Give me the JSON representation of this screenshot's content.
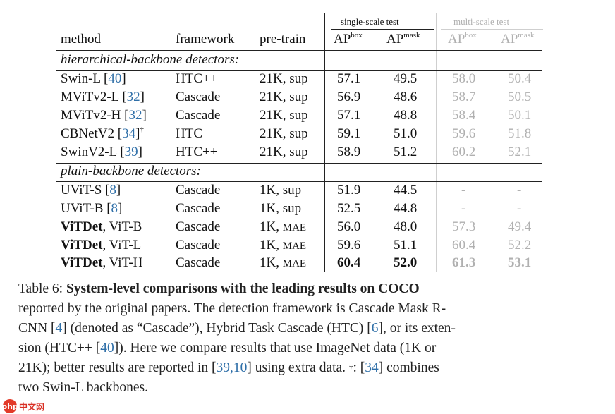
{
  "table": {
    "headers": {
      "method": "method",
      "framework": "framework",
      "pretrain": "pre-train",
      "group_single": "single-scale test",
      "group_multi": "multi-scale test",
      "ap": "AP",
      "box": "box",
      "mask": "mask"
    },
    "sections": [
      {
        "label": "hierarchical-backbone detectors:",
        "rows": [
          {
            "method": "Swin-L",
            "ref": "40",
            "dagger": "",
            "framework": "HTC++",
            "pretrain": "21K, sup",
            "pretrain_sc": "",
            "ss_box": "57.1",
            "ss_mask": "49.5",
            "ms_box": "58.0",
            "ms_mask": "50.4"
          },
          {
            "method": "MViTv2-L",
            "ref": "32",
            "dagger": "",
            "framework": "Cascade",
            "pretrain": "21K, sup",
            "pretrain_sc": "",
            "ss_box": "56.9",
            "ss_mask": "48.6",
            "ms_box": "58.7",
            "ms_mask": "50.5"
          },
          {
            "method": "MViTv2-H",
            "ref": "32",
            "dagger": "",
            "framework": "Cascade",
            "pretrain": "21K, sup",
            "pretrain_sc": "",
            "ss_box": "57.1",
            "ss_mask": "48.8",
            "ms_box": "58.4",
            "ms_mask": "50.1"
          },
          {
            "method": "CBNetV2",
            "ref": "34",
            "dagger": "†",
            "framework": "HTC",
            "pretrain": "21K, sup",
            "pretrain_sc": "",
            "ss_box": "59.1",
            "ss_mask": "51.0",
            "ms_box": "59.6",
            "ms_mask": "51.8"
          },
          {
            "method": "SwinV2-L",
            "ref": "39",
            "dagger": "",
            "framework": "HTC++",
            "pretrain": "21K, sup",
            "pretrain_sc": "",
            "ss_box": "58.9",
            "ss_mask": "51.2",
            "ms_box": "60.2",
            "ms_mask": "52.1"
          }
        ]
      },
      {
        "label": "plain-backbone detectors:",
        "rows": [
          {
            "method": "UViT-S",
            "ref": "8",
            "bold_part": "",
            "framework": "Cascade",
            "pretrain": "1K, sup",
            "pretrain_sc": "",
            "ss_box": "51.9",
            "ss_mask": "44.5",
            "ms_box": "-",
            "ms_mask": "-"
          },
          {
            "method": "UViT-B",
            "ref": "8",
            "bold_part": "",
            "framework": "Cascade",
            "pretrain": "1K, sup",
            "pretrain_sc": "",
            "ss_box": "52.5",
            "ss_mask": "44.8",
            "ms_box": "-",
            "ms_mask": "-"
          },
          {
            "bold_part": "ViTDet",
            "method": ", ViT-B",
            "ref": "",
            "framework": "Cascade",
            "pretrain": "1K,",
            "pretrain_sc": "MAE",
            "ss_box": "56.0",
            "ss_mask": "48.0",
            "ms_box": "57.3",
            "ms_mask": "49.4"
          },
          {
            "bold_part": "ViTDet",
            "method": ", ViT-L",
            "ref": "",
            "framework": "Cascade",
            "pretrain": "1K,",
            "pretrain_sc": "MAE",
            "ss_box": "59.6",
            "ss_mask": "51.1",
            "ms_box": "60.4",
            "ms_mask": "52.2"
          },
          {
            "bold_part": "ViTDet",
            "method": ", ViT-H",
            "ref": "",
            "framework": "Cascade",
            "pretrain": "1K,",
            "pretrain_sc": "MAE",
            "ss_box": "60.4",
            "ss_mask": "52.0",
            "ms_box": "61.3",
            "ms_mask": "53.1",
            "bold_values": true
          }
        ]
      }
    ]
  },
  "caption": {
    "line1_a": "Table 6: ",
    "line1_b": "System-level comparisons with the leading results on COCO",
    "line2": "reported by the original papers.  The detection framework is Cascade Mask R-",
    "line3_a": "CNN [",
    "line3_r1": "4",
    "line3_b": "] (denoted as “Cascade”), Hybrid Task Cascade (HTC) [",
    "line3_r2": "6",
    "line3_c": "], or its exten-",
    "line4_a": "sion (HTC++ [",
    "line4_r1": "40",
    "line4_b": "]).  Here we compare results that use ImageNet data (1K or",
    "line5_a": "21K); better results are reported in [",
    "line5_r1": "39",
    "line5_sep": ",",
    "line5_r2": "10",
    "line5_b": "] using extra data.  ",
    "line5_dagger": "†",
    "line5_c": ": [",
    "line5_r3": "34",
    "line5_d": "] combines",
    "line6": "two Swin-L backbones."
  },
  "watermark": {
    "logo": "php",
    "text": "中文网"
  }
}
